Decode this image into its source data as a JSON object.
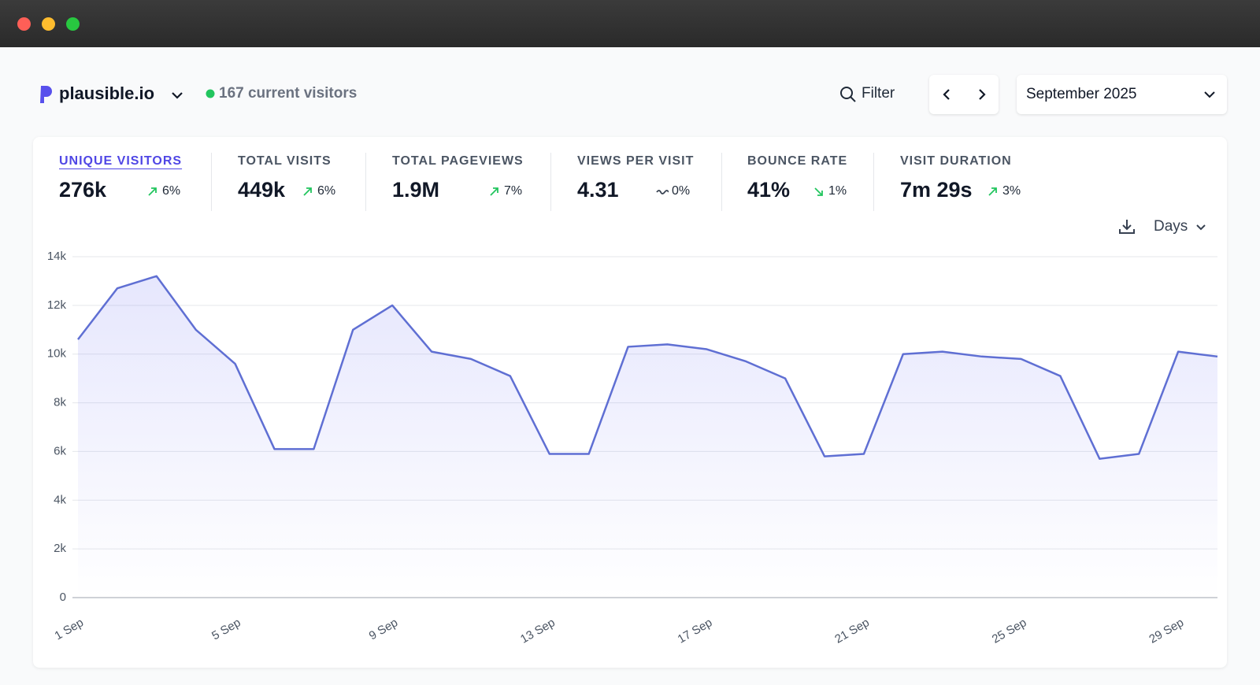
{
  "header": {
    "site": "plausible.io",
    "current_visitors": "167 current visitors",
    "filter": "Filter",
    "period": "September 2025"
  },
  "metrics": [
    {
      "label": "UNIQUE VISITORS",
      "value": "276k",
      "change": "6%",
      "trend": "up"
    },
    {
      "label": "TOTAL VISITS",
      "value": "449k",
      "change": "6%",
      "trend": "up"
    },
    {
      "label": "TOTAL PAGEVIEWS",
      "value": "1.9M",
      "change": "7%",
      "trend": "up"
    },
    {
      "label": "VIEWS PER VISIT",
      "value": "4.31",
      "change": "0%",
      "trend": "flat"
    },
    {
      "label": "BOUNCE RATE",
      "value": "41%",
      "change": "1%",
      "trend": "down"
    },
    {
      "label": "VISIT DURATION",
      "value": "7m 29s",
      "change": "3%",
      "trend": "up"
    }
  ],
  "chart_controls": {
    "interval": "Days"
  },
  "chart_data": {
    "type": "area",
    "categories": [
      "1 Sep",
      null,
      null,
      null,
      "5 Sep",
      null,
      null,
      null,
      "9 Sep",
      null,
      null,
      null,
      "13 Sep",
      null,
      null,
      null,
      "17 Sep",
      null,
      null,
      null,
      "21 Sep",
      null,
      null,
      null,
      "25 Sep",
      null,
      null,
      null,
      "29 Sep",
      null
    ],
    "values": [
      10600,
      12700,
      13200,
      11000,
      9600,
      6100,
      6100,
      11000,
      12000,
      10100,
      9800,
      9100,
      5900,
      5900,
      10300,
      10400,
      10200,
      9700,
      9000,
      5800,
      5900,
      10000,
      10100,
      9900,
      9800,
      9100,
      5700,
      5900,
      10100,
      9900
    ],
    "color": "#5f6fd3",
    "ylim": [
      0,
      14000
    ],
    "yticks": [
      0,
      {
        "value": 2000,
        "label": "2k"
      },
      {
        "value": 4000,
        "label": "4k"
      },
      {
        "value": 6000,
        "label": "6k"
      },
      {
        "value": 8000,
        "label": "8k"
      },
      {
        "value": 10000,
        "label": "10k"
      },
      {
        "value": 12000,
        "label": "12k"
      },
      {
        "value": 14000,
        "label": "14k"
      }
    ],
    "grid": true
  }
}
